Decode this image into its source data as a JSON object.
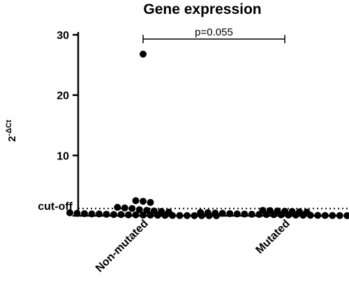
{
  "chart_data": {
    "type": "scatter",
    "title": "Gene expression",
    "ylabel_base": "2",
    "ylabel_exponent": "-ΔCt",
    "categories": [
      "Non-mutated",
      "Mutated"
    ],
    "ylim": [
      0,
      30
    ],
    "yticks": [
      {
        "value": 0,
        "label": ""
      },
      {
        "value": 10,
        "label": "10"
      },
      {
        "value": 20,
        "label": "20"
      },
      {
        "value": 30,
        "label": "30"
      }
    ],
    "cutoff": {
      "value": 1.2,
      "label": "cut-off"
    },
    "comparison": {
      "label": "p=0.055",
      "from": 0,
      "to": 1,
      "y": 29.3
    },
    "series": [
      {
        "values": [
          26.8,
          2.5,
          2.4,
          2.2,
          1.4,
          1.3,
          1.2,
          1.0,
          0.9,
          0.8,
          0.7,
          0.6,
          0.5,
          0.4,
          0.35,
          0.3,
          0.3,
          0.25,
          0.2,
          0.2,
          0.15,
          0.15,
          0.1,
          0.1,
          0.08,
          0.06,
          0.05,
          0.04,
          0.03,
          0.02,
          0.02,
          0.01,
          0.01
        ]
      },
      {
        "values": [
          0.9,
          0.85,
          0.8,
          0.75,
          0.7,
          0.65,
          0.6,
          0.55,
          0.5,
          0.45,
          0.4,
          0.35,
          0.3,
          0.28,
          0.25,
          0.22,
          0.2,
          0.18,
          0.15,
          0.12,
          0.1,
          0.09,
          0.08,
          0.06,
          0.05,
          0.04,
          0.03,
          0.02,
          0.02,
          0.01,
          0.01
        ]
      }
    ]
  }
}
